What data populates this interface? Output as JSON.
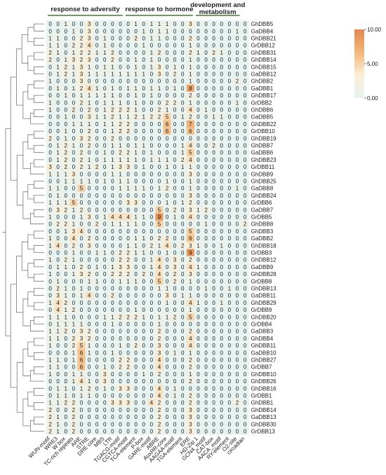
{
  "chart_data": {
    "type": "heatmap",
    "groups": [
      {
        "label": "response to adversity",
        "start": 0,
        "end": 9
      },
      {
        "label": "response to hormone",
        "start": 10,
        "end": 18
      },
      {
        "label": "development and metabolism",
        "start": 19,
        "end": 24
      }
    ],
    "columns": [
      "WUN-motif",
      "WRE3",
      "W box",
      "TC-rich repeats",
      "ARE",
      "STRE",
      "DRE core",
      "MBS",
      "LTR",
      "TGACG-motif",
      "CGTCA-motif",
      "TCA-element",
      "P-box",
      "GARE-motif",
      "ABRE",
      "AuxRR-core",
      "AAGAA-motif",
      "TGA-element",
      "ERE",
      "HD-Zip 1",
      "GCN4_motif",
      "CAT-box",
      "AACA_motif",
      "RY-element",
      "O2-site",
      "circadian"
    ],
    "rows": [
      "GhDBB5",
      "GaDBB4",
      "GhDBB21",
      "GrDBB12",
      "GhDBB31",
      "GhDBB14",
      "GhDBB15",
      "GaDBB12",
      "GhDBB2",
      "GaDBB1",
      "GhDBB17",
      "GrDBB2",
      "GhDBB6",
      "GaDBB5",
      "GhDBB22",
      "GrDBB10",
      "GhDBB19",
      "GhDBB7",
      "GaDBB6",
      "GhDBB23",
      "GrDBB11",
      "GhDBB9",
      "GhDBB25",
      "GaDBB8",
      "GhDBB24",
      "GrDBB6",
      "GaDBB7",
      "GrDBB5",
      "GhDBB8",
      "GhDBB3",
      "GaDBB2",
      "GhDBB18",
      "GrDBB3",
      "GhDBB12",
      "GaDBB9",
      "GhDBB28",
      "GrDBB8",
      "GhDBB13",
      "GaDBB11",
      "GhDBB29",
      "GrDBB9",
      "GhDBB20",
      "GrDBB4",
      "GaDBB3",
      "GhDBB4",
      "GhDBB11",
      "GaDBB10",
      "GhDBB27",
      "GrDBB7",
      "GhDBB10",
      "GhDBB26",
      "GhDBB16",
      "GrDBB1",
      "GhDBB1",
      "GhDBB14",
      "GaDBB13",
      "GhDBB30",
      "GrDBB13"
    ],
    "values": [
      [
        0,
        0,
        1,
        0,
        0,
        3,
        0,
        0,
        0,
        0,
        0,
        1,
        0,
        1,
        1,
        1,
        0,
        0,
        3,
        0,
        0,
        0,
        0,
        0,
        0,
        0
      ],
      [
        0,
        0,
        0,
        1,
        0,
        3,
        0,
        0,
        0,
        0,
        0,
        0,
        1,
        0,
        1,
        1,
        0,
        0,
        0,
        0,
        0,
        0,
        0,
        0,
        1,
        0
      ],
      [
        1,
        1,
        0,
        0,
        2,
        3,
        0,
        1,
        0,
        0,
        0,
        2,
        0,
        1,
        1,
        0,
        0,
        0,
        2,
        0,
        0,
        0,
        0,
        0,
        0,
        0
      ],
      [
        1,
        1,
        0,
        2,
        2,
        4,
        0,
        1,
        0,
        0,
        0,
        0,
        1,
        0,
        0,
        0,
        0,
        0,
        1,
        0,
        0,
        0,
        0,
        0,
        0,
        0
      ],
      [
        2,
        1,
        0,
        1,
        2,
        2,
        1,
        1,
        2,
        0,
        0,
        0,
        0,
        1,
        2,
        0,
        0,
        0,
        2,
        1,
        0,
        2,
        1,
        0,
        0,
        0
      ],
      [
        2,
        0,
        1,
        3,
        2,
        3,
        0,
        0,
        2,
        0,
        0,
        1,
        0,
        1,
        0,
        0,
        0,
        0,
        1,
        0,
        0,
        0,
        0,
        0,
        0,
        0
      ],
      [
        0,
        1,
        2,
        1,
        3,
        1,
        0,
        1,
        1,
        0,
        0,
        1,
        0,
        1,
        3,
        0,
        1,
        0,
        1,
        0,
        0,
        0,
        0,
        0,
        0,
        0
      ],
      [
        0,
        1,
        2,
        1,
        3,
        1,
        1,
        1,
        1,
        1,
        1,
        1,
        1,
        0,
        3,
        0,
        2,
        0,
        1,
        0,
        0,
        0,
        0,
        0,
        0,
        0
      ],
      [
        1,
        0,
        0,
        0,
        3,
        0,
        0,
        0,
        0,
        0,
        0,
        0,
        0,
        0,
        0,
        0,
        0,
        0,
        1,
        0,
        0,
        0,
        0,
        0,
        2,
        0
      ],
      [
        0,
        1,
        0,
        1,
        2,
        4,
        1,
        0,
        1,
        0,
        1,
        1,
        0,
        1,
        1,
        0,
        1,
        0,
        8,
        0,
        0,
        0,
        0,
        0,
        0,
        0
      ],
      [
        0,
        0,
        1,
        0,
        1,
        1,
        1,
        1,
        1,
        0,
        0,
        1,
        0,
        1,
        0,
        0,
        0,
        0,
        2,
        0,
        0,
        0,
        0,
        0,
        0,
        0
      ],
      [
        1,
        0,
        0,
        0,
        2,
        1,
        0,
        1,
        1,
        1,
        0,
        1,
        0,
        0,
        0,
        2,
        2,
        0,
        1,
        0,
        0,
        0,
        0,
        0,
        1,
        0
      ],
      [
        1,
        0,
        0,
        2,
        0,
        2,
        0,
        1,
        2,
        2,
        2,
        1,
        0,
        0,
        2,
        1,
        0,
        0,
        4,
        0,
        1,
        0,
        0,
        0,
        0,
        0
      ],
      [
        0,
        0,
        1,
        0,
        0,
        3,
        1,
        1,
        2,
        1,
        1,
        2,
        1,
        2,
        2,
        5,
        0,
        1,
        2,
        0,
        0,
        1,
        1,
        0,
        0,
        0
      ],
      [
        0,
        0,
        0,
        1,
        1,
        1,
        0,
        1,
        1,
        2,
        2,
        0,
        0,
        0,
        0,
        6,
        0,
        0,
        7,
        0,
        0,
        0,
        0,
        0,
        0,
        0
      ],
      [
        0,
        0,
        1,
        0,
        0,
        2,
        0,
        0,
        1,
        2,
        2,
        0,
        0,
        0,
        0,
        6,
        0,
        0,
        6,
        0,
        0,
        0,
        0,
        0,
        0,
        0
      ],
      [
        2,
        0,
        1,
        0,
        3,
        2,
        0,
        0,
        2,
        0,
        0,
        0,
        0,
        0,
        0,
        0,
        0,
        0,
        0,
        0,
        0,
        0,
        0,
        0,
        0,
        0
      ],
      [
        0,
        1,
        2,
        1,
        0,
        2,
        0,
        0,
        1,
        1,
        0,
        1,
        1,
        0,
        0,
        0,
        0,
        1,
        4,
        0,
        0,
        2,
        0,
        0,
        0,
        0
      ],
      [
        0,
        1,
        2,
        0,
        2,
        0,
        0,
        1,
        0,
        2,
        2,
        1,
        0,
        1,
        0,
        0,
        0,
        1,
        5,
        0,
        0,
        0,
        0,
        0,
        0,
        0
      ],
      [
        0,
        1,
        2,
        0,
        2,
        1,
        0,
        1,
        1,
        1,
        1,
        1,
        0,
        1,
        1,
        1,
        0,
        2,
        4,
        0,
        0,
        0,
        0,
        0,
        0,
        0
      ],
      [
        3,
        0,
        2,
        0,
        2,
        1,
        2,
        0,
        1,
        3,
        3,
        0,
        1,
        0,
        0,
        1,
        0,
        1,
        1,
        0,
        0,
        0,
        0,
        0,
        0,
        0
      ],
      [
        1,
        1,
        1,
        3,
        0,
        0,
        0,
        0,
        1,
        1,
        0,
        0,
        0,
        0,
        0,
        0,
        0,
        0,
        3,
        0,
        0,
        0,
        0,
        0,
        0,
        0
      ],
      [
        0,
        0,
        1,
        1,
        1,
        1,
        0,
        1,
        0,
        1,
        1,
        0,
        0,
        0,
        0,
        1,
        0,
        0,
        1,
        0,
        0,
        0,
        0,
        0,
        0,
        0
      ],
      [
        1,
        1,
        0,
        0,
        5,
        0,
        0,
        0,
        0,
        1,
        1,
        1,
        1,
        0,
        1,
        2,
        0,
        0,
        1,
        0,
        0,
        0,
        0,
        0,
        1,
        0
      ],
      [
        0,
        1,
        0,
        0,
        0,
        0,
        0,
        0,
        0,
        0,
        0,
        0,
        0,
        0,
        0,
        0,
        0,
        0,
        3,
        0,
        0,
        0,
        0,
        0,
        0,
        0
      ],
      [
        1,
        1,
        1,
        5,
        0,
        0,
        0,
        0,
        0,
        0,
        3,
        3,
        0,
        0,
        0,
        1,
        0,
        1,
        2,
        0,
        0,
        0,
        0,
        0,
        0,
        0
      ],
      [
        0,
        3,
        2,
        1,
        2,
        0,
        0,
        0,
        0,
        0,
        0,
        0,
        0,
        0,
        5,
        0,
        2,
        0,
        3,
        1,
        2,
        0,
        0,
        0,
        0,
        0
      ],
      [
        1,
        0,
        0,
        0,
        1,
        3,
        0,
        1,
        4,
        4,
        4,
        1,
        1,
        0,
        9,
        0,
        1,
        0,
        4,
        0,
        0,
        0,
        0,
        0,
        0,
        0
      ],
      [
        0,
        2,
        2,
        1,
        0,
        0,
        2,
        0,
        1,
        1,
        1,
        1,
        0,
        0,
        5,
        0,
        0,
        0,
        0,
        0,
        1,
        0,
        0,
        0,
        0,
        2
      ],
      [
        0,
        0,
        1,
        3,
        4,
        0,
        0,
        0,
        0,
        0,
        0,
        0,
        0,
        0,
        0,
        0,
        0,
        0,
        5,
        0,
        0,
        0,
        0,
        0,
        0,
        0
      ],
      [
        1,
        0,
        0,
        4,
        0,
        2,
        0,
        0,
        0,
        0,
        0,
        1,
        1,
        0,
        2,
        2,
        0,
        0,
        6,
        0,
        0,
        0,
        0,
        0,
        0,
        0
      ],
      [
        1,
        4,
        0,
        2,
        0,
        3,
        0,
        0,
        0,
        0,
        1,
        1,
        0,
        2,
        1,
        4,
        0,
        2,
        3,
        1,
        0,
        0,
        1,
        0,
        0,
        0
      ],
      [
        0,
        0,
        0,
        1,
        0,
        0,
        1,
        1,
        0,
        2,
        2,
        1,
        1,
        0,
        0,
        1,
        0,
        0,
        9,
        0,
        0,
        0,
        0,
        0,
        0,
        0
      ],
      [
        1,
        0,
        2,
        1,
        0,
        0,
        0,
        0,
        0,
        2,
        2,
        0,
        0,
        1,
        4,
        0,
        3,
        0,
        2,
        0,
        0,
        0,
        0,
        0,
        0,
        0
      ],
      [
        0,
        1,
        1,
        0,
        2,
        0,
        1,
        0,
        1,
        3,
        3,
        0,
        0,
        1,
        4,
        0,
        3,
        0,
        4,
        1,
        0,
        0,
        0,
        0,
        0,
        0
      ],
      [
        1,
        0,
        0,
        1,
        3,
        2,
        0,
        0,
        2,
        2,
        2,
        0,
        2,
        0,
        4,
        0,
        2,
        0,
        3,
        0,
        0,
        0,
        0,
        0,
        0,
        0
      ],
      [
        0,
        1,
        0,
        0,
        0,
        1,
        1,
        0,
        0,
        1,
        1,
        1,
        0,
        0,
        5,
        0,
        2,
        0,
        1,
        0,
        0,
        0,
        0,
        0,
        0,
        0
      ],
      [
        0,
        2,
        1,
        0,
        1,
        0,
        0,
        0,
        0,
        0,
        0,
        0,
        0,
        0,
        1,
        1,
        0,
        0,
        0,
        0,
        1,
        0,
        0,
        1,
        0,
        0
      ],
      [
        0,
        3,
        1,
        0,
        1,
        4,
        0,
        0,
        2,
        0,
        0,
        0,
        0,
        0,
        0,
        3,
        0,
        1,
        1,
        0,
        0,
        0,
        0,
        0,
        0,
        0
      ],
      [
        1,
        4,
        2,
        0,
        0,
        0,
        0,
        0,
        0,
        0,
        0,
        0,
        0,
        0,
        0,
        1,
        0,
        0,
        4,
        1,
        0,
        0,
        1,
        0,
        0,
        0
      ],
      [
        0,
        4,
        1,
        2,
        0,
        0,
        0,
        0,
        0,
        0,
        0,
        1,
        0,
        0,
        0,
        0,
        0,
        0,
        1,
        0,
        0,
        0,
        0,
        0,
        0,
        0
      ],
      [
        1,
        1,
        1,
        0,
        0,
        0,
        0,
        1,
        1,
        2,
        2,
        2,
        1,
        0,
        1,
        1,
        2,
        0,
        5,
        0,
        0,
        0,
        0,
        0,
        0,
        0
      ],
      [
        0,
        1,
        1,
        1,
        1,
        0,
        0,
        0,
        1,
        0,
        0,
        0,
        0,
        0,
        1,
        0,
        0,
        0,
        0,
        0,
        0,
        0,
        0,
        0,
        0,
        0
      ],
      [
        1,
        1,
        2,
        0,
        3,
        2,
        0,
        0,
        0,
        0,
        0,
        0,
        0,
        0,
        2,
        0,
        0,
        0,
        2,
        0,
        0,
        0,
        0,
        0,
        0,
        0
      ],
      [
        1,
        1,
        0,
        2,
        3,
        2,
        0,
        0,
        0,
        0,
        0,
        0,
        0,
        0,
        2,
        0,
        0,
        0,
        4,
        0,
        0,
        0,
        0,
        0,
        0,
        0
      ],
      [
        1,
        0,
        0,
        2,
        5,
        1,
        0,
        0,
        0,
        1,
        0,
        2,
        0,
        0,
        3,
        0,
        0,
        0,
        4,
        0,
        0,
        0,
        0,
        0,
        0,
        0
      ],
      [
        0,
        0,
        0,
        1,
        6,
        1,
        0,
        0,
        1,
        0,
        0,
        0,
        0,
        0,
        3,
        0,
        1,
        0,
        1,
        0,
        0,
        0,
        0,
        0,
        0,
        0
      ],
      [
        1,
        1,
        0,
        1,
        6,
        0,
        0,
        0,
        0,
        2,
        2,
        0,
        0,
        0,
        4,
        0,
        0,
        0,
        2,
        0,
        0,
        0,
        0,
        0,
        0,
        0
      ],
      [
        1,
        1,
        0,
        0,
        6,
        0,
        0,
        1,
        0,
        2,
        2,
        0,
        0,
        0,
        4,
        0,
        0,
        0,
        2,
        0,
        0,
        0,
        0,
        0,
        0,
        0
      ],
      [
        1,
        0,
        0,
        1,
        1,
        0,
        0,
        3,
        0,
        0,
        0,
        0,
        1,
        0,
        2,
        0,
        0,
        0,
        1,
        0,
        0,
        0,
        0,
        0,
        0,
        0
      ],
      [
        0,
        0,
        0,
        1,
        4,
        1,
        0,
        3,
        0,
        0,
        0,
        0,
        0,
        0,
        0,
        0,
        0,
        0,
        2,
        0,
        0,
        0,
        0,
        0,
        0,
        0
      ],
      [
        0,
        1,
        1,
        0,
        1,
        2,
        0,
        1,
        0,
        3,
        3,
        0,
        0,
        0,
        4,
        0,
        1,
        0,
        0,
        0,
        0,
        0,
        0,
        0,
        0,
        0
      ],
      [
        0,
        1,
        1,
        0,
        1,
        1,
        0,
        0,
        0,
        0,
        0,
        0,
        0,
        0,
        4,
        0,
        1,
        0,
        2,
        0,
        0,
        0,
        0,
        0,
        0,
        0
      ],
      [
        1,
        1,
        2,
        2,
        0,
        0,
        0,
        0,
        3,
        3,
        3,
        0,
        0,
        4,
        2,
        0,
        0,
        0,
        2,
        0,
        0,
        0,
        0,
        0,
        2,
        0
      ],
      [
        2,
        0,
        0,
        2,
        0,
        0,
        0,
        0,
        0,
        0,
        0,
        0,
        0,
        0,
        2,
        0,
        0,
        0,
        3,
        0,
        0,
        0,
        0,
        0,
        0,
        0
      ],
      [
        2,
        1,
        0,
        2,
        0,
        0,
        0,
        0,
        0,
        0,
        0,
        0,
        0,
        0,
        2,
        0,
        0,
        0,
        3,
        0,
        0,
        0,
        0,
        0,
        0,
        0
      ],
      [
        2,
        1,
        0,
        2,
        0,
        0,
        0,
        0,
        0,
        0,
        0,
        0,
        0,
        0,
        2,
        0,
        0,
        0,
        3,
        0,
        0,
        0,
        0,
        0,
        0,
        0
      ],
      [
        2,
        1,
        0,
        2,
        0,
        0,
        0,
        0,
        0,
        0,
        0,
        0,
        0,
        0,
        2,
        0,
        0,
        0,
        3,
        0,
        0,
        0,
        0,
        0,
        0,
        0
      ]
    ],
    "scale": {
      "min": 0,
      "max": 10,
      "colors": [
        "#e6f3f1",
        "#fbeed6",
        "#f2b77b",
        "#e2874f"
      ],
      "ticks": [
        "10.00",
        "5.00",
        "0.00"
      ]
    },
    "dendrogram": true
  }
}
